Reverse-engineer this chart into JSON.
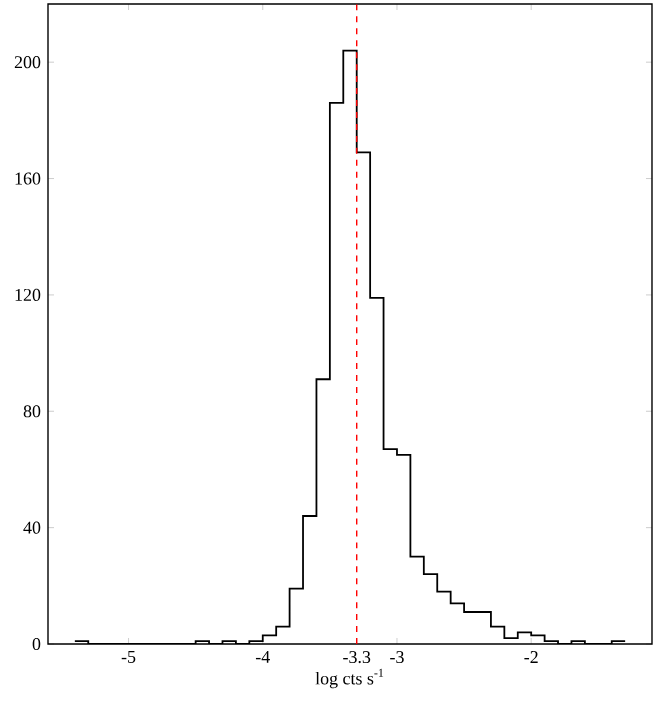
{
  "chart_data": {
    "type": "histogram",
    "bins": [
      -5.4,
      -5.3,
      -5.2,
      -5.1,
      -5.0,
      -4.9,
      -4.8,
      -4.7,
      -4.6,
      -4.5,
      -4.4,
      -4.3,
      -4.2,
      -4.1,
      -4.0,
      -3.9,
      -3.8,
      -3.7,
      -3.6,
      -3.5,
      -3.4,
      -3.3,
      -3.2,
      -3.1,
      -3.0,
      -2.9,
      -2.8,
      -2.7,
      -2.6,
      -2.5,
      -2.4,
      -2.3,
      -2.2,
      -2.1,
      -2.0,
      -1.9,
      -1.8,
      -1.7,
      -1.6,
      -1.5,
      -1.4,
      -1.3
    ],
    "values": [
      1,
      0,
      0,
      0,
      0,
      0,
      0,
      0,
      0,
      1,
      0,
      1,
      0,
      1,
      3,
      6,
      19,
      44,
      91,
      186,
      204,
      169,
      119,
      67,
      65,
      30,
      24,
      18,
      14,
      11,
      11,
      6,
      2,
      4,
      3,
      1,
      0,
      1,
      0,
      0,
      1
    ],
    "color": "#000000",
    "xlabel": "log cts s$^{-1}$",
    "xlim": [
      -5.6,
      -1.1
    ],
    "ylim": [
      0,
      220
    ],
    "xticks": [
      -5,
      -4,
      -3.3,
      -3,
      -2
    ],
    "yticks": [
      0,
      40,
      80,
      120,
      160,
      200
    ],
    "ref_lines": [
      {
        "axis": "x",
        "value": -3.3,
        "color": "#ff0000",
        "line_style": "dashed"
      }
    ],
    "grid": false
  }
}
